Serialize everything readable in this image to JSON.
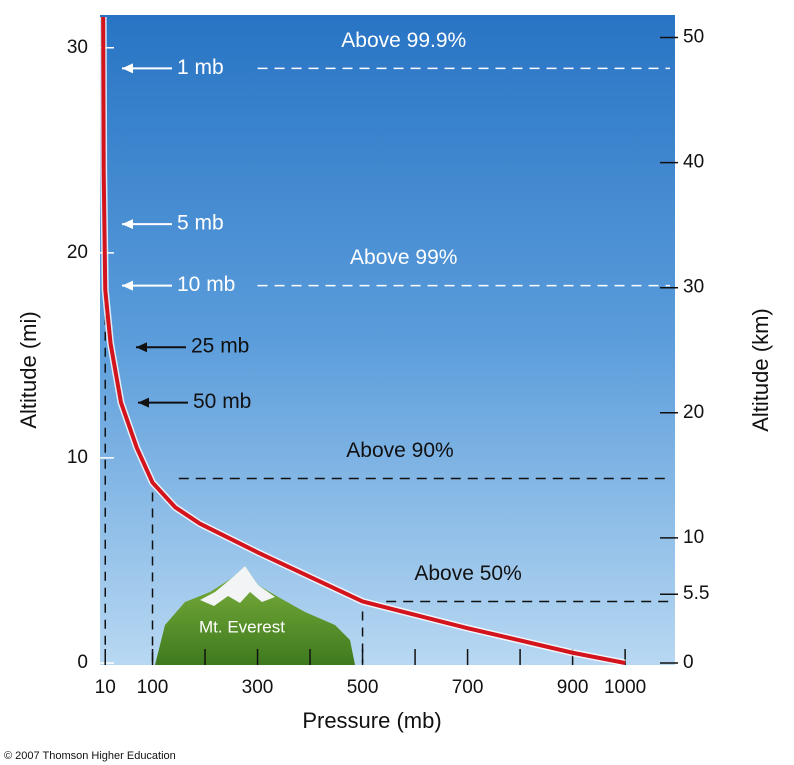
{
  "chart_data": {
    "type": "line",
    "x_label": "Pressure (mb)",
    "y_label": "Altitude (mi)",
    "y2_label": "Altitude (km)",
    "credit": "© 2007 Thomson Higher Education",
    "mountain_label": "Mt. Everest",
    "series": [
      {
        "name": "Pressure",
        "color": "#d3141c",
        "x": [
          1000,
          900,
          700,
          500,
          300,
          190,
          143,
          100,
          70,
          40,
          20,
          10,
          7,
          6
        ],
        "values": [
          0,
          0.5,
          1.7,
          3.0,
          5.4,
          6.8,
          7.6,
          8.8,
          10.5,
          12.7,
          15.6,
          18.2,
          24,
          31.5
        ]
      }
    ],
    "xlim": [
      0,
      1095
    ],
    "xticks": [
      10,
      100,
      300,
      500,
      700,
      900,
      1000
    ],
    "xminor": [
      200,
      400,
      600,
      800
    ],
    "ylim": [
      0,
      31.6
    ],
    "yticks": [
      0,
      10,
      20,
      30
    ],
    "y2lim": [
      0,
      51.8
    ],
    "y2ticks": [
      0,
      5.5,
      10,
      20,
      30,
      40,
      50
    ],
    "pressure_labels": [
      {
        "text": "1 mb",
        "altitude": 29.0,
        "color": "#ffffff"
      },
      {
        "text": "5 mb",
        "altitude": 21.4,
        "color": "#ffffff"
      },
      {
        "text": "10 mb",
        "altitude": 18.4,
        "color": "#ffffff"
      },
      {
        "text": "25 mb",
        "altitude": 15.4,
        "color": "#111111"
      },
      {
        "text": "50 mb",
        "altitude": 12.7,
        "color": "#111111"
      }
    ],
    "levels": [
      {
        "text": "Above 99.9%",
        "altitude": 29.0,
        "from": 300,
        "color": "#ffffff"
      },
      {
        "text": "Above 99%",
        "altitude": 18.4,
        "from": 300,
        "color": "#ffffff"
      },
      {
        "text": "Above 90%",
        "altitude": 9.0,
        "from": 150,
        "color": "#111111"
      },
      {
        "text": "Above 50%",
        "altitude": 3.0,
        "from": 545,
        "color": "#111111"
      }
    ],
    "drops": [
      10,
      100,
      500
    ]
  }
}
